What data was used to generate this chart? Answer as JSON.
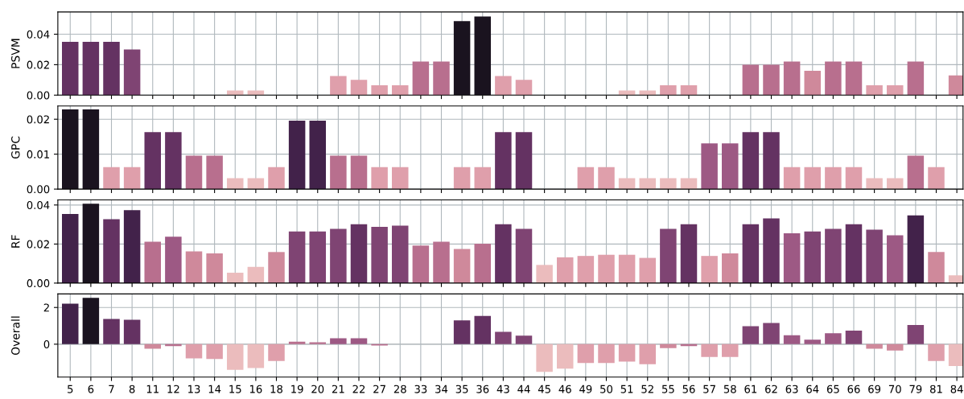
{
  "chart_data": [
    {
      "type": "bar",
      "ylabel": "PSVM",
      "grid": true,
      "tick_labels": "y",
      "categories": [
        "5",
        "6",
        "7",
        "8",
        "11",
        "12",
        "13",
        "14",
        "15",
        "16",
        "18",
        "19",
        "20",
        "21",
        "22",
        "27",
        "28",
        "33",
        "34",
        "35",
        "36",
        "43",
        "44",
        "45",
        "46",
        "49",
        "50",
        "51",
        "52",
        "55",
        "56",
        "57",
        "58",
        "61",
        "62",
        "63",
        "64",
        "65",
        "66",
        "69",
        "70",
        "79",
        "81",
        "84"
      ],
      "values": [
        0.035,
        0.035,
        0.035,
        0.03,
        0,
        0,
        0,
        0,
        0.003,
        0.003,
        0,
        0,
        0,
        0.0125,
        0.01,
        0.0065,
        0.0065,
        0.022,
        0.022,
        0.0486,
        0.0516,
        0.0125,
        0.01,
        0,
        0,
        0,
        0,
        0.003,
        0.003,
        0.0065,
        0.0065,
        0,
        0,
        0.02,
        0.02,
        0.022,
        0.016,
        0.022,
        0.022,
        0.0065,
        0.0065,
        0.022,
        0,
        0.013
      ],
      "colors": [
        "#643262",
        "#643262",
        "#643262",
        "#7f4473",
        "#ebbcbd",
        "#ebbcbd",
        "#ebbcbd",
        "#ebbcbd",
        "#ebbcbd",
        "#ebbcbd",
        "#ebbcbd",
        "#ebbcbd",
        "#ebbcbd",
        "#df9fab",
        "#df9fab",
        "#df9fab",
        "#df9fab",
        "#b86f8e",
        "#b86f8e",
        "#1a131f",
        "#1a131f",
        "#df9fab",
        "#df9fab",
        "#ebbcbd",
        "#ebbcbd",
        "#ebbcbd",
        "#ebbcbd",
        "#ebbcbd",
        "#ebbcbd",
        "#df9fab",
        "#df9fab",
        "#ebbcbd",
        "#ebbcbd",
        "#b86f8e",
        "#b86f8e",
        "#b86f8e",
        "#cf899b",
        "#b86f8e",
        "#b86f8e",
        "#df9fab",
        "#df9fab",
        "#b86f8e",
        "#ebbcbd",
        "#cf899b"
      ],
      "ylim": [
        0,
        0.0546
      ],
      "yticks": [
        {
          "value": 0,
          "label": "0.00"
        },
        {
          "value": 0.02,
          "label": "0.02"
        },
        {
          "value": 0.04,
          "label": "0.04"
        }
      ]
    },
    {
      "type": "bar",
      "ylabel": "GPC",
      "grid": true,
      "tick_labels": "y",
      "categories": [
        "5",
        "6",
        "7",
        "8",
        "11",
        "12",
        "13",
        "14",
        "15",
        "16",
        "18",
        "19",
        "20",
        "21",
        "22",
        "27",
        "28",
        "33",
        "34",
        "35",
        "36",
        "43",
        "44",
        "45",
        "46",
        "49",
        "50",
        "51",
        "52",
        "55",
        "56",
        "57",
        "58",
        "61",
        "62",
        "63",
        "64",
        "65",
        "66",
        "69",
        "70",
        "79",
        "81",
        "84"
      ],
      "values": [
        0.0228,
        0.0228,
        0.0063,
        0.0063,
        0.0163,
        0.0163,
        0.0096,
        0.0096,
        0.0031,
        0.0031,
        0.0063,
        0.0196,
        0.0196,
        0.0096,
        0.0096,
        0.0063,
        0.0063,
        0,
        0,
        0.0063,
        0.0063,
        0.0163,
        0.0163,
        0,
        0,
        0.0063,
        0.0063,
        0.0031,
        0.0031,
        0.0031,
        0.0031,
        0.0131,
        0.0131,
        0.0163,
        0.0163,
        0.0063,
        0.0063,
        0.0063,
        0.0063,
        0.0031,
        0.0031,
        0.0096,
        0.0063,
        0
      ],
      "colors": [
        "#1a131f",
        "#1a131f",
        "#df9fab",
        "#df9fab",
        "#643262",
        "#643262",
        "#b86f8e",
        "#b86f8e",
        "#ebbcbd",
        "#ebbcbd",
        "#df9fab",
        "#42224a",
        "#42224a",
        "#b86f8e",
        "#b86f8e",
        "#df9fab",
        "#df9fab",
        "#ebbcbd",
        "#ebbcbd",
        "#df9fab",
        "#df9fab",
        "#643262",
        "#643262",
        "#ebbcbd",
        "#ebbcbd",
        "#df9fab",
        "#df9fab",
        "#ebbcbd",
        "#ebbcbd",
        "#ebbcbd",
        "#ebbcbd",
        "#9d5984",
        "#9d5984",
        "#643262",
        "#643262",
        "#df9fab",
        "#df9fab",
        "#df9fab",
        "#df9fab",
        "#ebbcbd",
        "#ebbcbd",
        "#b86f8e",
        "#df9fab",
        "#ebbcbd"
      ],
      "ylim": [
        0,
        0.0238
      ],
      "yticks": [
        {
          "value": 0,
          "label": "0.00"
        },
        {
          "value": 0.01,
          "label": "0.01"
        },
        {
          "value": 0.02,
          "label": "0.02"
        }
      ]
    },
    {
      "type": "bar",
      "ylabel": "RF",
      "grid": true,
      "tick_labels": "y",
      "categories": [
        "5",
        "6",
        "7",
        "8",
        "11",
        "12",
        "13",
        "14",
        "15",
        "16",
        "18",
        "19",
        "20",
        "21",
        "22",
        "27",
        "28",
        "33",
        "34",
        "35",
        "36",
        "43",
        "44",
        "45",
        "46",
        "49",
        "50",
        "51",
        "52",
        "55",
        "56",
        "57",
        "58",
        "61",
        "62",
        "63",
        "64",
        "65",
        "66",
        "69",
        "70",
        "79",
        "81",
        "84"
      ],
      "values": [
        0.0354,
        0.0407,
        0.0327,
        0.0374,
        0.0212,
        0.0238,
        0.0162,
        0.0152,
        0.0053,
        0.0083,
        0.0159,
        0.0264,
        0.0264,
        0.0278,
        0.0301,
        0.0288,
        0.0294,
        0.0192,
        0.0212,
        0.0175,
        0.0202,
        0.0301,
        0.0278,
        0.0093,
        0.0132,
        0.0139,
        0.0145,
        0.0145,
        0.0129,
        0.0278,
        0.0301,
        0.0139,
        0.0152,
        0.0301,
        0.0331,
        0.0255,
        0.0264,
        0.0278,
        0.0301,
        0.0274,
        0.0245,
        0.0347,
        0.0159,
        0.004
      ],
      "colors": [
        "#42224a",
        "#1a131f",
        "#643262",
        "#42224a",
        "#b86f8e",
        "#9d5984",
        "#cf899b",
        "#cf899b",
        "#ebbcbd",
        "#ebbcbd",
        "#cf899b",
        "#7f4473",
        "#7f4473",
        "#7f4473",
        "#643262",
        "#7f4473",
        "#7f4473",
        "#b86f8e",
        "#b86f8e",
        "#cf899b",
        "#b86f8e",
        "#643262",
        "#7f4473",
        "#ebbcbd",
        "#df9fab",
        "#df9fab",
        "#df9fab",
        "#df9fab",
        "#df9fab",
        "#7f4473",
        "#643262",
        "#df9fab",
        "#cf899b",
        "#643262",
        "#643262",
        "#9d5984",
        "#7f4473",
        "#7f4473",
        "#643262",
        "#7f4473",
        "#9d5984",
        "#42224a",
        "#cf899b",
        "#ebbcbd"
      ],
      "ylim": [
        0,
        0.0426
      ],
      "yticks": [
        {
          "value": 0,
          "label": "0.00"
        },
        {
          "value": 0.02,
          "label": "0.02"
        },
        {
          "value": 0.04,
          "label": "0.04"
        }
      ]
    },
    {
      "type": "bar",
      "ylabel": "Overall",
      "grid": true,
      "categories": [
        "5",
        "6",
        "7",
        "8",
        "11",
        "12",
        "13",
        "14",
        "15",
        "16",
        "18",
        "19",
        "20",
        "21",
        "22",
        "27",
        "28",
        "33",
        "34",
        "35",
        "36",
        "43",
        "44",
        "45",
        "46",
        "49",
        "50",
        "51",
        "52",
        "55",
        "56",
        "57",
        "58",
        "61",
        "62",
        "63",
        "64",
        "65",
        "66",
        "69",
        "70",
        "79",
        "81",
        "84"
      ],
      "values": [
        2.21,
        2.53,
        1.37,
        1.33,
        -0.25,
        -0.1,
        -0.77,
        -0.81,
        -1.4,
        -1.3,
        -0.91,
        0.14,
        0.1,
        0.32,
        0.32,
        -0.07,
        0,
        0,
        0,
        1.3,
        1.54,
        0.67,
        0.46,
        -1.51,
        -1.33,
        -1.02,
        -1.02,
        -0.95,
        -1.09,
        -0.21,
        -0.1,
        -0.7,
        -0.7,
        0.98,
        1.16,
        0.49,
        0.25,
        0.6,
        0.74,
        -0.25,
        -0.35,
        1.05,
        -0.91,
        -1.19
      ],
      "colors": [
        "#42224a",
        "#1a131f",
        "#643262",
        "#643262",
        "#cf899b",
        "#b86f8e",
        "#df9fab",
        "#df9fab",
        "#ebbcbd",
        "#ebbcbd",
        "#df9fab",
        "#b86f8e",
        "#b86f8e",
        "#9d5984",
        "#9d5984",
        "#b86f8e",
        "#b86f8e",
        "#b86f8e",
        "#b86f8e",
        "#643262",
        "#643262",
        "#7f4473",
        "#7f4473",
        "#ebbcbd",
        "#ebbcbd",
        "#df9fab",
        "#df9fab",
        "#df9fab",
        "#df9fab",
        "#cf899b",
        "#b86f8e",
        "#df9fab",
        "#df9fab",
        "#7f4473",
        "#7f4473",
        "#9d5984",
        "#9d5984",
        "#9d5984",
        "#7f4473",
        "#cf899b",
        "#cf899b",
        "#7f4473",
        "#df9fab",
        "#ebbcbd"
      ],
      "ylim": [
        -1.79,
        2.74
      ],
      "yticks": [
        0,
        2
      ]
    }
  ]
}
